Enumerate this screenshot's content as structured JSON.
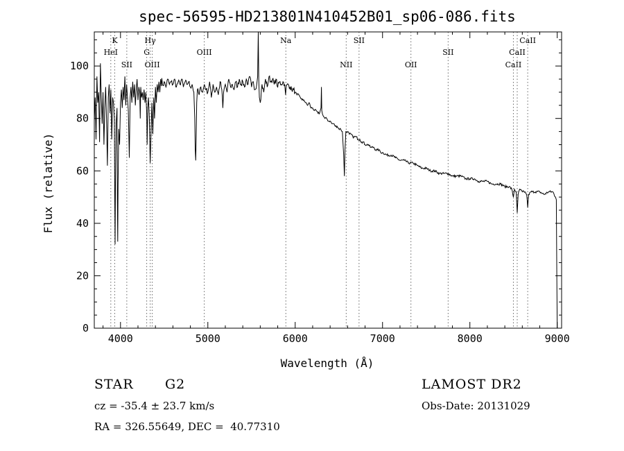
{
  "chart_data": {
    "type": "line",
    "title": "spec-56595-HD213801N410452B01_sp06-086.fits",
    "xlabel": "Wavelength (Å)",
    "ylabel": "Flux (relative)",
    "xlim": [
      3700,
      9050
    ],
    "ylim": [
      0,
      113
    ],
    "xticks": [
      4000,
      5000,
      6000,
      7000,
      8000,
      9000
    ],
    "yticks": [
      0,
      20,
      40,
      60,
      80,
      100
    ],
    "grid": false,
    "series": [
      {
        "points": [
          [
            3700,
            79
          ],
          [
            3710,
            88
          ],
          [
            3720,
            72
          ],
          [
            3730,
            96
          ],
          [
            3740,
            86
          ],
          [
            3750,
            90
          ],
          [
            3760,
            71
          ],
          [
            3770,
            101
          ],
          [
            3780,
            88
          ],
          [
            3790,
            78
          ],
          [
            3800,
            90
          ],
          [
            3810,
            70
          ],
          [
            3820,
            84
          ],
          [
            3830,
            92
          ],
          [
            3840,
            80
          ],
          [
            3850,
            62
          ],
          [
            3860,
            88
          ],
          [
            3870,
            93
          ],
          [
            3880,
            82
          ],
          [
            3890,
            91
          ],
          [
            3900,
            72
          ],
          [
            3910,
            88
          ],
          [
            3920,
            86
          ],
          [
            3930,
            80
          ],
          [
            3934,
            50
          ],
          [
            3938,
            32
          ],
          [
            3942,
            55
          ],
          [
            3950,
            78
          ],
          [
            3960,
            84
          ],
          [
            3964,
            48
          ],
          [
            3968,
            33
          ],
          [
            3972,
            55
          ],
          [
            3980,
            76
          ],
          [
            3990,
            70
          ],
          [
            4000,
            86
          ],
          [
            4010,
            91
          ],
          [
            4020,
            84
          ],
          [
            4030,
            92
          ],
          [
            4040,
            87
          ],
          [
            4050,
            96
          ],
          [
            4060,
            85
          ],
          [
            4070,
            93
          ],
          [
            4080,
            88
          ],
          [
            4090,
            83
          ],
          [
            4101,
            65
          ],
          [
            4110,
            88
          ],
          [
            4120,
            92
          ],
          [
            4130,
            86
          ],
          [
            4140,
            94
          ],
          [
            4150,
            88
          ],
          [
            4160,
            93
          ],
          [
            4170,
            85
          ],
          [
            4180,
            91
          ],
          [
            4190,
            95
          ],
          [
            4200,
            87
          ],
          [
            4210,
            92
          ],
          [
            4220,
            90
          ],
          [
            4226,
            80
          ],
          [
            4232,
            92
          ],
          [
            4240,
            88
          ],
          [
            4250,
            90
          ],
          [
            4260,
            87
          ],
          [
            4270,
            91
          ],
          [
            4280,
            86
          ],
          [
            4290,
            90
          ],
          [
            4300,
            82
          ],
          [
            4305,
            70
          ],
          [
            4312,
            84
          ],
          [
            4320,
            88
          ],
          [
            4330,
            80
          ],
          [
            4340,
            63
          ],
          [
            4350,
            75
          ],
          [
            4360,
            86
          ],
          [
            4370,
            74
          ],
          [
            4380,
            88
          ],
          [
            4390,
            80
          ],
          [
            4400,
            92
          ],
          [
            4410,
            86
          ],
          [
            4420,
            93
          ],
          [
            4430,
            90
          ],
          [
            4440,
            94
          ],
          [
            4450,
            90
          ],
          [
            4460,
            95
          ],
          [
            4480,
            93
          ],
          [
            4500,
            94
          ],
          [
            4520,
            92
          ],
          [
            4540,
            95
          ],
          [
            4560,
            93
          ],
          [
            4580,
            94
          ],
          [
            4600,
            93
          ],
          [
            4620,
            95
          ],
          [
            4640,
            92
          ],
          [
            4660,
            94
          ],
          [
            4680,
            93
          ],
          [
            4700,
            95
          ],
          [
            4720,
            92
          ],
          [
            4740,
            94
          ],
          [
            4760,
            93
          ],
          [
            4780,
            94
          ],
          [
            4800,
            92
          ],
          [
            4820,
            93
          ],
          [
            4840,
            90
          ],
          [
            4850,
            80
          ],
          [
            4856,
            68
          ],
          [
            4861,
            64
          ],
          [
            4866,
            72
          ],
          [
            4872,
            86
          ],
          [
            4880,
            91
          ],
          [
            4900,
            89
          ],
          [
            4920,
            92
          ],
          [
            4940,
            90
          ],
          [
            4960,
            93
          ],
          [
            4980,
            91
          ],
          [
            5000,
            90
          ],
          [
            5020,
            94
          ],
          [
            5040,
            88
          ],
          [
            5060,
            93
          ],
          [
            5080,
            90
          ],
          [
            5100,
            92
          ],
          [
            5120,
            89
          ],
          [
            5140,
            94
          ],
          [
            5160,
            91
          ],
          [
            5172,
            84
          ],
          [
            5180,
            90
          ],
          [
            5200,
            93
          ],
          [
            5220,
            90
          ],
          [
            5240,
            95
          ],
          [
            5260,
            92
          ],
          [
            5280,
            93
          ],
          [
            5300,
            91
          ],
          [
            5320,
            94
          ],
          [
            5340,
            92
          ],
          [
            5360,
            95
          ],
          [
            5380,
            93
          ],
          [
            5400,
            94
          ],
          [
            5420,
            92
          ],
          [
            5440,
            95
          ],
          [
            5460,
            93
          ],
          [
            5480,
            96
          ],
          [
            5500,
            92
          ],
          [
            5520,
            94
          ],
          [
            5540,
            91
          ],
          [
            5560,
            93
          ],
          [
            5570,
            96
          ],
          [
            5577,
            113
          ],
          [
            5583,
            95
          ],
          [
            5590,
            88
          ],
          [
            5600,
            86
          ],
          [
            5620,
            93
          ],
          [
            5640,
            90
          ],
          [
            5660,
            95
          ],
          [
            5680,
            92
          ],
          [
            5700,
            96
          ],
          [
            5720,
            94
          ],
          [
            5740,
            95
          ],
          [
            5760,
            93
          ],
          [
            5780,
            95
          ],
          [
            5800,
            92
          ],
          [
            5820,
            94
          ],
          [
            5840,
            93
          ],
          [
            5860,
            94
          ],
          [
            5880,
            93
          ],
          [
            5890,
            89
          ],
          [
            5896,
            92
          ],
          [
            5920,
            93
          ],
          [
            5940,
            92
          ],
          [
            5960,
            91
          ],
          [
            5980,
            91
          ],
          [
            6000,
            90
          ],
          [
            6020,
            89
          ],
          [
            6040,
            89
          ],
          [
            6060,
            88
          ],
          [
            6080,
            87
          ],
          [
            6100,
            87
          ],
          [
            6120,
            86
          ],
          [
            6140,
            85
          ],
          [
            6160,
            86
          ],
          [
            6180,
            84
          ],
          [
            6200,
            84
          ],
          [
            6220,
            83
          ],
          [
            6240,
            83
          ],
          [
            6260,
            82
          ],
          [
            6280,
            82
          ],
          [
            6296,
            84
          ],
          [
            6300,
            92
          ],
          [
            6304,
            83
          ],
          [
            6320,
            81
          ],
          [
            6340,
            80
          ],
          [
            6360,
            80
          ],
          [
            6380,
            79
          ],
          [
            6400,
            79
          ],
          [
            6420,
            78
          ],
          [
            6440,
            78
          ],
          [
            6460,
            77
          ],
          [
            6480,
            77
          ],
          [
            6500,
            76
          ],
          [
            6520,
            76
          ],
          [
            6540,
            75
          ],
          [
            6555,
            66
          ],
          [
            6563,
            58
          ],
          [
            6570,
            68
          ],
          [
            6580,
            75
          ],
          [
            6600,
            75
          ],
          [
            6620,
            74
          ],
          [
            6640,
            74
          ],
          [
            6660,
            73
          ],
          [
            6680,
            73
          ],
          [
            6700,
            73
          ],
          [
            6720,
            72
          ],
          [
            6740,
            72
          ],
          [
            6760,
            71
          ],
          [
            6780,
            71
          ],
          [
            6800,
            70
          ],
          [
            6820,
            70
          ],
          [
            6840,
            70
          ],
          [
            6860,
            69
          ],
          [
            6880,
            69
          ],
          [
            6900,
            69
          ],
          [
            6920,
            68
          ],
          [
            6940,
            68
          ],
          [
            6960,
            68
          ],
          [
            6980,
            67
          ],
          [
            7000,
            67
          ],
          [
            7050,
            66
          ],
          [
            7100,
            66
          ],
          [
            7150,
            65
          ],
          [
            7200,
            64
          ],
          [
            7250,
            64
          ],
          [
            7300,
            63
          ],
          [
            7350,
            63
          ],
          [
            7400,
            62
          ],
          [
            7450,
            61
          ],
          [
            7500,
            61
          ],
          [
            7550,
            60
          ],
          [
            7600,
            60
          ],
          [
            7650,
            59
          ],
          [
            7700,
            59
          ],
          [
            7750,
            59
          ],
          [
            7800,
            58
          ],
          [
            7850,
            58
          ],
          [
            7900,
            58
          ],
          [
            7950,
            57
          ],
          [
            8000,
            57
          ],
          [
            8050,
            57
          ],
          [
            8100,
            56
          ],
          [
            8150,
            56
          ],
          [
            8200,
            56
          ],
          [
            8250,
            55
          ],
          [
            8300,
            55
          ],
          [
            8350,
            55
          ],
          [
            8400,
            54
          ],
          [
            8450,
            54
          ],
          [
            8480,
            53
          ],
          [
            8498,
            50
          ],
          [
            8510,
            53
          ],
          [
            8530,
            52
          ],
          [
            8542,
            44
          ],
          [
            8552,
            51
          ],
          [
            8570,
            53
          ],
          [
            8600,
            52
          ],
          [
            8630,
            52
          ],
          [
            8650,
            51
          ],
          [
            8662,
            46
          ],
          [
            8672,
            51
          ],
          [
            8700,
            52
          ],
          [
            8750,
            52
          ],
          [
            8800,
            52
          ],
          [
            8850,
            51
          ],
          [
            8900,
            52
          ],
          [
            8950,
            52
          ],
          [
            8980,
            50
          ],
          [
            8990,
            49
          ],
          [
            8995,
            20
          ],
          [
            9000,
            0
          ]
        ]
      }
    ],
    "lines": [
      {
        "wavelength": 3889,
        "label": "HeI",
        "row": 2
      },
      {
        "wavelength": 3934,
        "label": "K",
        "row": 1
      },
      {
        "wavelength": 4072,
        "label": "SII",
        "row": 3
      },
      {
        "wavelength": 4300,
        "label": "G",
        "row": 2
      },
      {
        "wavelength": 4340,
        "label": "Hγ",
        "row": 1
      },
      {
        "wavelength": 4363,
        "label": "OIII",
        "row": 3
      },
      {
        "wavelength": 4959,
        "label": "OIII",
        "row": 2
      },
      {
        "wavelength": 5893,
        "label": "Na",
        "row": 1
      },
      {
        "wavelength": 6584,
        "label": "NII",
        "row": 3
      },
      {
        "wavelength": 6731,
        "label": "SII",
        "row": 1
      },
      {
        "wavelength": 7325,
        "label": "OII",
        "row": 3
      },
      {
        "wavelength": 7751,
        "label": "SII",
        "row": 2
      },
      {
        "wavelength": 8498,
        "label": "CaII",
        "row": 3
      },
      {
        "wavelength": 8542,
        "label": "CaII",
        "row": 2
      },
      {
        "wavelength": 8662,
        "label": "CaII",
        "row": 1
      }
    ]
  },
  "info": {
    "object_class": "STAR",
    "subclass": "G2",
    "survey": "LAMOST DR2",
    "cz": "cz = -35.4 ± 23.7 km/s",
    "obs_date": "Obs-Date: 20131029",
    "coords": "RA = 326.55649, DEC =  40.77310"
  }
}
